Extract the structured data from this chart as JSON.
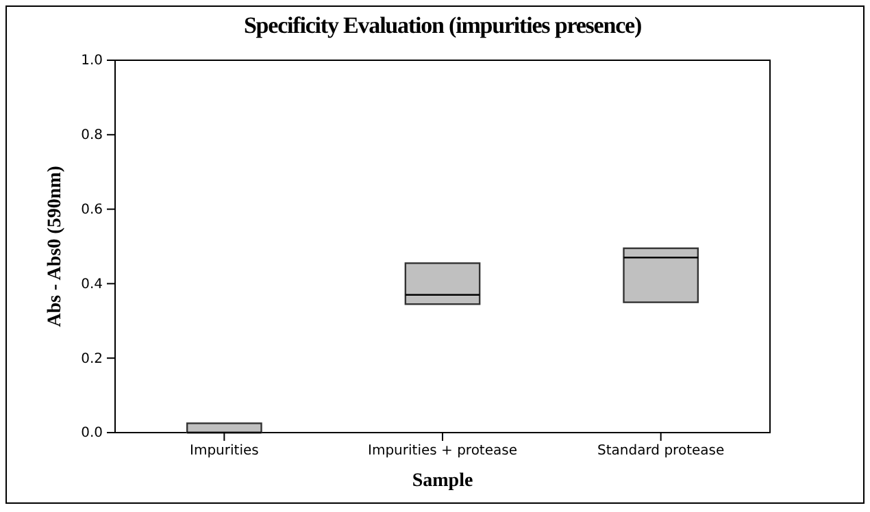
{
  "chart_data": {
    "type": "box",
    "title": "Specificity Evaluation (impurities presence)",
    "xlabel": "Sample",
    "ylabel": "Abs - Abs0 (590nm)",
    "categories": [
      "Impurities",
      "Impurities + protease",
      "Standard protease"
    ],
    "boxes": [
      {
        "low": 0,
        "q1": 0,
        "median": 0,
        "q3": 0.025,
        "high": 0.025
      },
      {
        "low": 0.345,
        "q1": 0.345,
        "median": 0.37,
        "q3": 0.455,
        "high": 0.455
      },
      {
        "low": 0.35,
        "q1": 0.35,
        "median": 0.47,
        "q3": 0.495,
        "high": 0.495
      }
    ],
    "color": "#c0c0c0",
    "ylim": [
      0,
      1
    ],
    "yticks": [
      {
        "value": 0,
        "label": "0.0"
      },
      {
        "value": 0.2,
        "label": "0.2"
      },
      {
        "value": 0.4,
        "label": "0.4"
      },
      {
        "value": 0.6,
        "label": "0.6"
      },
      {
        "value": 0.8,
        "label": "0.8"
      },
      {
        "value": 1,
        "label": "1.0"
      }
    ]
  }
}
